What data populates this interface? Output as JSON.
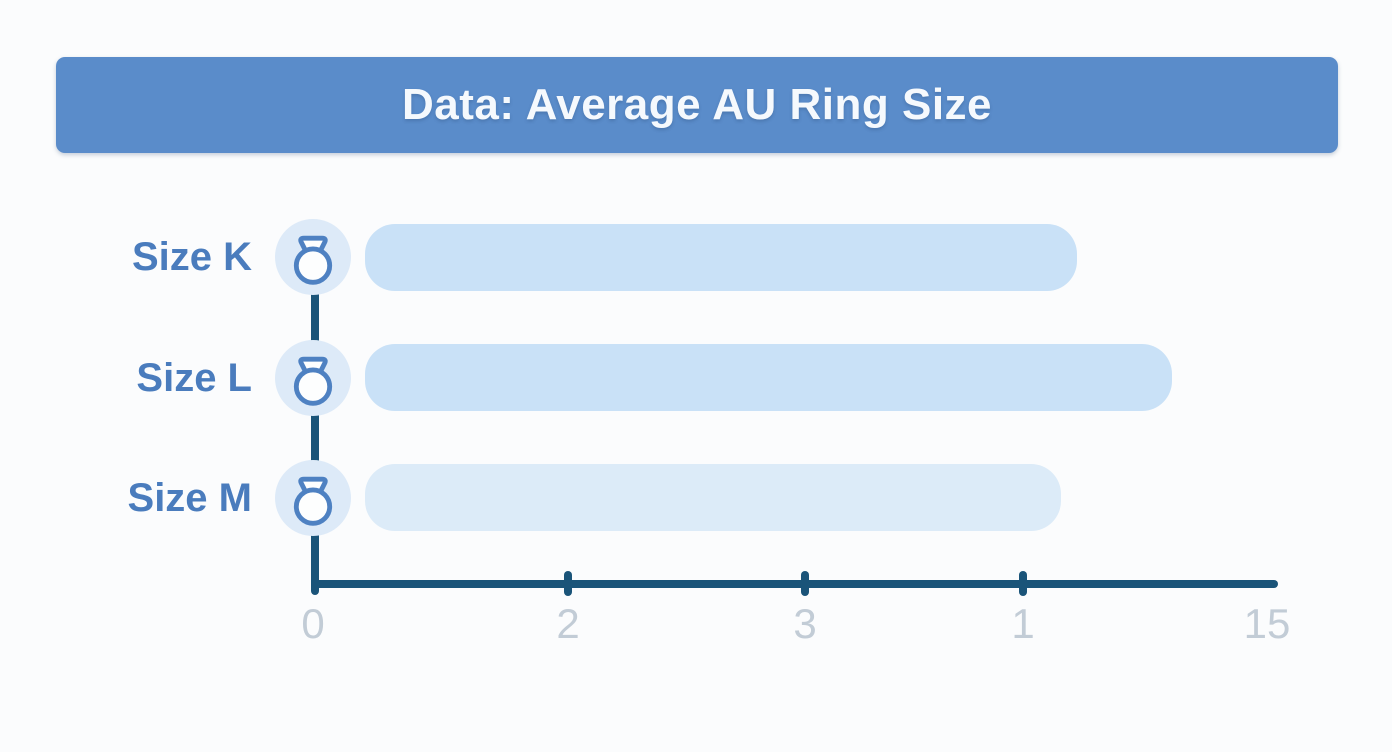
{
  "banner": {
    "title": "Data: Average AU Ring Size"
  },
  "colors": {
    "background": "#fbfcfd",
    "banner_bg": "#5a8cca",
    "banner_text": "#f5f9fd",
    "label_text": "#4a7cbd",
    "icon_badge_bg": "#ddeaf8",
    "icon_stroke": "#4e81c2",
    "axis": "#1a5479",
    "tick_label": "#c2ccd6"
  },
  "chart_data": {
    "type": "bar",
    "orientation": "horizontal",
    "title": "Data: Average AU Ring Size",
    "categories": [
      "Size K",
      "Size L",
      "Size M"
    ],
    "values": [
      12,
      13.5,
      11.75
    ],
    "xlim": [
      0,
      15
    ],
    "x_tick_labels": [
      "0",
      "2",
      "3",
      "1",
      "15"
    ],
    "bar_colors": [
      "#c9e1f7",
      "#c9e1f7",
      "#dcebf8"
    ],
    "xlabel": "",
    "ylabel": "",
    "grid": false,
    "legend": "none",
    "row_icon": "ring-icon"
  }
}
